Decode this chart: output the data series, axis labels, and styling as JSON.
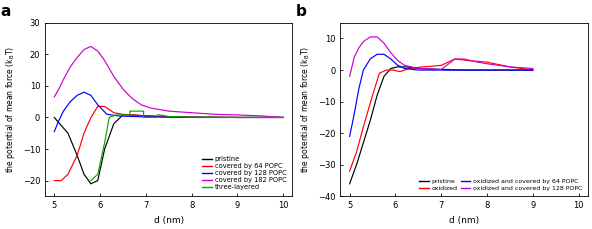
{
  "panel_a": {
    "title": "a",
    "xlabel": "d (nm)",
    "ylabel": "the potential of mean force (k$_\\mathrm{B}$T)",
    "xlim": [
      4.8,
      10.2
    ],
    "ylim": [
      -25,
      30
    ],
    "yticks": [
      -20,
      -10,
      0,
      10,
      20,
      30
    ],
    "xticks": [
      5,
      6,
      7,
      8,
      9,
      10
    ],
    "curves": {
      "pristine": {
        "color": "black",
        "x": [
          5.0,
          5.3,
          5.5,
          5.65,
          5.8,
          5.95,
          6.1,
          6.3,
          6.5,
          6.7,
          7.0,
          7.5,
          8.0,
          9.0,
          10.0
        ],
        "y": [
          0.0,
          -5,
          -12,
          -18,
          -21,
          -20,
          -10,
          -2,
          0.8,
          0.8,
          0.5,
          0.2,
          0.1,
          0.0,
          0.0
        ]
      },
      "covered64": {
        "color": "#ff0000",
        "x": [
          5.0,
          5.15,
          5.3,
          5.5,
          5.65,
          5.8,
          5.95,
          6.1,
          6.3,
          6.5,
          6.7,
          7.0,
          7.5,
          8.0,
          9.0,
          10.0
        ],
        "y": [
          -20,
          -20,
          -18,
          -12,
          -5,
          0,
          3.5,
          3.5,
          1.5,
          1.0,
          0.8,
          0.5,
          0.2,
          0.1,
          0.0,
          0.0
        ]
      },
      "covered128": {
        "color": "#0000ff",
        "x": [
          5.0,
          5.1,
          5.2,
          5.35,
          5.5,
          5.65,
          5.8,
          5.95,
          6.15,
          6.4,
          6.7,
          7.0,
          7.5,
          8.0,
          9.0,
          10.0
        ],
        "y": [
          -4.5,
          -1,
          2,
          5,
          7,
          8,
          7,
          4,
          1.0,
          0.5,
          0.3,
          0.2,
          0.1,
          0.0,
          0.0,
          0.0
        ]
      },
      "covered182": {
        "color": "#cc00cc",
        "x": [
          5.0,
          5.1,
          5.2,
          5.35,
          5.5,
          5.65,
          5.8,
          5.95,
          6.1,
          6.3,
          6.5,
          6.7,
          6.9,
          7.1,
          7.5,
          8.0,
          8.5,
          9.0,
          9.5,
          10.0
        ],
        "y": [
          6.5,
          9,
          12,
          16,
          19,
          21.5,
          22.5,
          21,
          18,
          13,
          9,
          6,
          4,
          3,
          2,
          1.5,
          1.0,
          0.8,
          0.5,
          0.0
        ]
      },
      "three_layered": {
        "color": "#00aa00",
        "x": [
          5.8,
          5.95,
          6.1,
          6.2,
          6.35,
          6.5,
          6.65,
          6.65,
          6.8,
          6.95,
          6.95,
          7.1,
          7.25,
          7.25,
          7.3,
          7.5,
          8.0,
          9.0,
          10.0
        ],
        "y": [
          -20,
          -18,
          -8,
          0,
          0.8,
          0.8,
          0.8,
          2.0,
          2.0,
          2.0,
          0.0,
          0.0,
          0.0,
          0.8,
          0.8,
          0.3,
          0.1,
          0.0,
          0.0
        ]
      }
    },
    "legend": [
      {
        "label": "pristine",
        "color": "black"
      },
      {
        "label": "covered by 64 POPC",
        "color": "#ff0000"
      },
      {
        "label": "covered by 128 POPC",
        "color": "#0000ff"
      },
      {
        "label": "covered by 182 POPC",
        "color": "#cc00cc"
      },
      {
        "label": "three-layered",
        "color": "#00aa00"
      }
    ]
  },
  "panel_b": {
    "title": "b",
    "xlabel": "d (nm)",
    "ylabel": "the potential of mean force (k$_\\mathrm{B}$T)",
    "xlim": [
      4.8,
      10.2
    ],
    "ylim": [
      -40,
      15
    ],
    "yticks": [
      -40,
      -30,
      -20,
      -10,
      0,
      10
    ],
    "xticks": [
      5,
      6,
      7,
      8,
      9,
      10
    ],
    "curves": {
      "pristine": {
        "color": "black",
        "x": [
          5.0,
          5.15,
          5.3,
          5.45,
          5.6,
          5.75,
          5.9,
          6.05,
          6.25,
          6.5,
          7.0,
          7.5,
          8.0,
          9.0
        ],
        "y": [
          -36,
          -30,
          -23,
          -16,
          -8,
          -2,
          0.5,
          1.0,
          1.0,
          0.5,
          0.2,
          0.0,
          0.0,
          0.0
        ]
      },
      "oxidized": {
        "color": "#ff0000",
        "x": [
          5.0,
          5.15,
          5.3,
          5.5,
          5.65,
          5.8,
          5.95,
          6.1,
          6.3,
          6.6,
          7.0,
          7.3,
          7.6,
          8.0,
          8.5,
          9.0
        ],
        "y": [
          -32,
          -26,
          -18,
          -8,
          -1,
          0.0,
          0.0,
          -0.5,
          0.5,
          1.0,
          1.5,
          3.5,
          3.0,
          2.5,
          1.0,
          0.0
        ]
      },
      "ox_covered64": {
        "color": "#0000ff",
        "x": [
          5.0,
          5.1,
          5.2,
          5.3,
          5.45,
          5.6,
          5.75,
          5.9,
          6.05,
          6.2,
          6.5,
          7.0,
          7.5,
          8.0,
          9.0
        ],
        "y": [
          -21,
          -14,
          -6,
          0,
          3.5,
          5.0,
          5.0,
          3.5,
          1.5,
          0.5,
          0.0,
          0.0,
          0.0,
          0.0,
          0.0
        ]
      },
      "ox_covered128": {
        "color": "#cc00cc",
        "x": [
          5.0,
          5.05,
          5.1,
          5.2,
          5.3,
          5.45,
          5.6,
          5.75,
          5.9,
          6.05,
          6.2,
          6.5,
          7.0,
          7.3,
          7.5,
          7.8,
          8.0,
          8.5,
          9.0
        ],
        "y": [
          -2,
          1,
          4,
          7,
          9,
          10.5,
          10.5,
          8.5,
          5.5,
          3.0,
          1.5,
          0.5,
          0.2,
          3.5,
          3.5,
          2.5,
          2.0,
          1.0,
          0.5
        ]
      }
    },
    "legend": [
      {
        "label": "pristine",
        "color": "black"
      },
      {
        "label": "oxidized",
        "color": "#ff0000"
      },
      {
        "label": "oxidized and covered by 64 POPC",
        "color": "#0000ff"
      },
      {
        "label": "oxidized and covered by 128 POPC",
        "color": "#cc00cc"
      }
    ]
  }
}
